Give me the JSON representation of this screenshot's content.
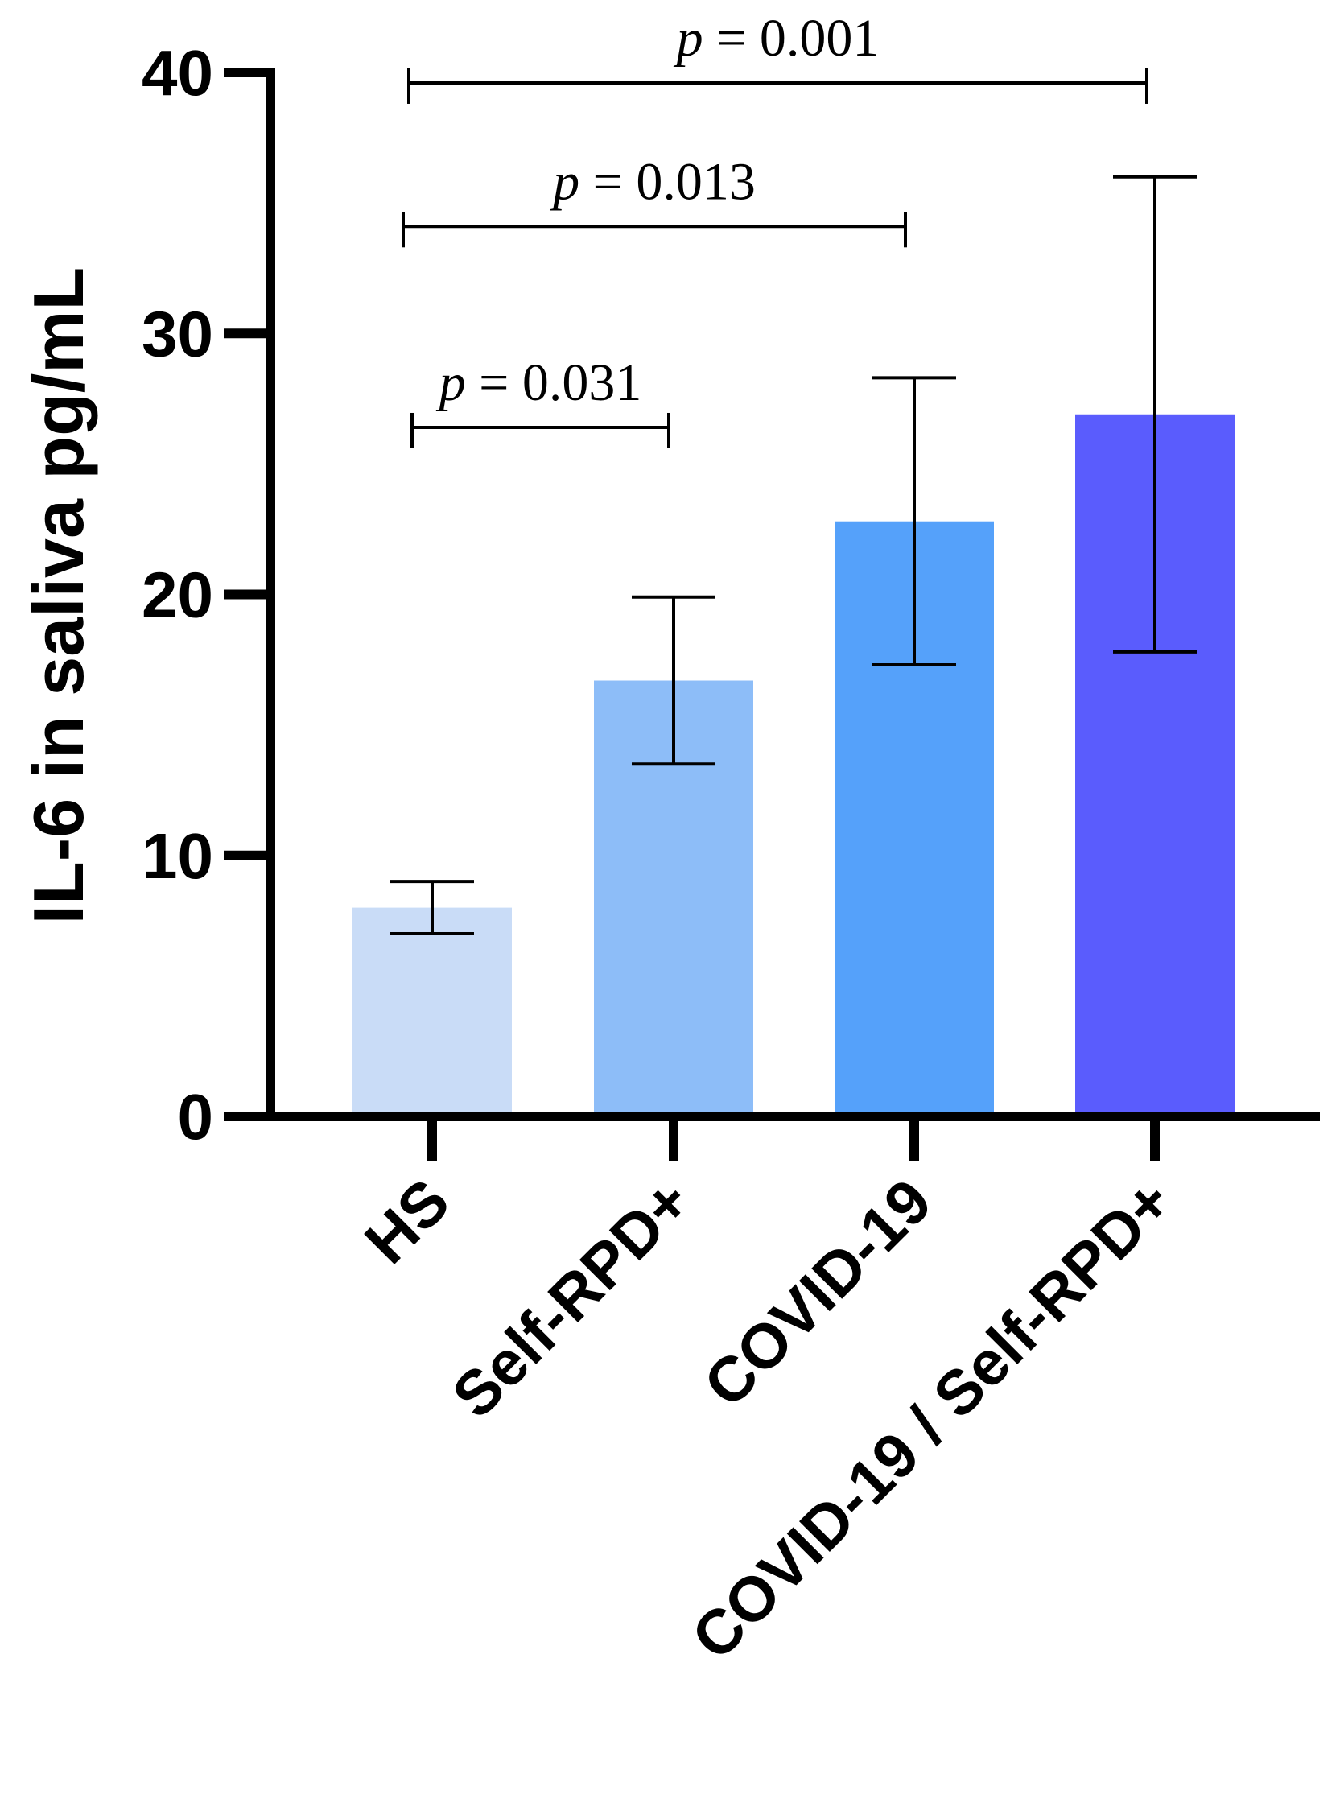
{
  "chart_data": {
    "type": "bar",
    "title": "",
    "xlabel": "",
    "ylabel": "IL-6 in saliva pg/mL",
    "ylim": [
      0,
      40
    ],
    "yticks": [
      "0",
      "10",
      "20",
      "30",
      "40"
    ],
    "categories": [
      "HS",
      "Self-RPD+",
      "COVID-19",
      "COVID-19 / Self-RPD+"
    ],
    "values": [
      8.0,
      16.7,
      22.8,
      26.9
    ],
    "error_low": [
      7.0,
      13.5,
      17.3,
      17.8
    ],
    "error_high": [
      9.0,
      19.9,
      28.3,
      36.0
    ],
    "colors": [
      "#c9dcf7",
      "#8dbdf8",
      "#55a1fa",
      "#5a5cfd"
    ],
    "significance": [
      {
        "from": 0,
        "to": 1,
        "level": 26.4,
        "label_prefix": "p",
        "label": "= 0.031"
      },
      {
        "from": 0,
        "to": 2,
        "level": 34.1,
        "label_prefix": "p",
        "label": "= 0.013"
      },
      {
        "from": 0,
        "to": 3,
        "level": 39.6,
        "label_prefix": "p",
        "label": "= 0.001"
      }
    ]
  }
}
